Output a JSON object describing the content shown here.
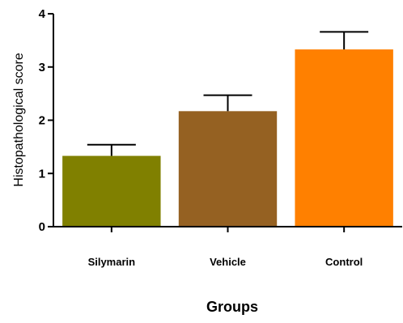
{
  "chart_data": {
    "type": "bar",
    "title": "",
    "xlabel": "Groups",
    "ylabel": "Histopathological score",
    "categories": [
      "Silymarin",
      "Vehicle",
      "Control"
    ],
    "values": [
      1.33,
      2.17,
      3.33
    ],
    "error_bars": [
      0.21,
      0.3,
      0.33
    ],
    "colors": [
      "#808000",
      "#956122",
      "#ff8000"
    ],
    "ylim": [
      0,
      4
    ],
    "yticks": [
      "0",
      "1",
      "2",
      "3",
      "4"
    ],
    "grid": false,
    "legend": "none"
  }
}
